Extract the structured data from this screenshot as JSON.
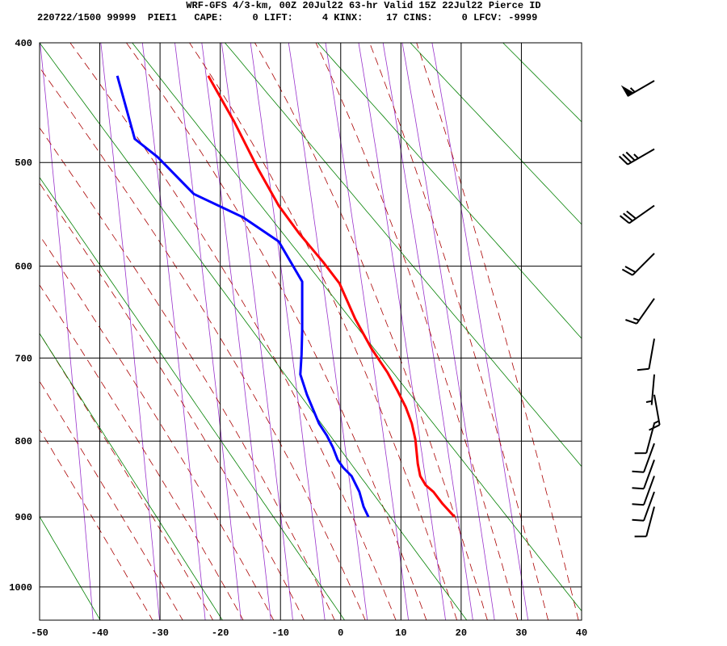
{
  "chart_data": {
    "type": "skew-t",
    "title": "WRF-GFS 4/3-km, 00Z 20Jul22 63-hr Valid 15Z 22Jul22 Pierce ID",
    "subtitle": "220722/1500 99999  PIEI1   CAPE:     0 LIFT:     4 KINX:    17 CINS:     0 LFCV: -9999",
    "xlim": [
      -50,
      40
    ],
    "xticks": [
      -50,
      -40,
      -30,
      -20,
      -10,
      0,
      10,
      20,
      30,
      40
    ],
    "ylim": [
      400,
      1050
    ],
    "yticks": [
      400,
      500,
      600,
      700,
      800,
      900,
      1000
    ],
    "grid": true,
    "series": [
      {
        "color": "#ff0000",
        "pressure": [
          900,
          882,
          866,
          857,
          845,
          829,
          798,
          778,
          758,
          738,
          717,
          689,
          656,
          618,
          596,
          567,
          540,
          506,
          464,
          426
        ],
        "values": [
          18.9,
          16.9,
          15.4,
          14.1,
          13.2,
          12.8,
          12.4,
          11.8,
          10.8,
          9.4,
          7.8,
          5.1,
          2.4,
          -0.2,
          -2.9,
          -6.9,
          -10.3,
          -13.7,
          -17.7,
          -22.0
        ]
      },
      {
        "color": "#0000ff",
        "pressure": [
          900,
          886,
          866,
          845,
          834,
          824,
          808,
          793,
          778,
          743,
          719,
          696,
          669,
          616,
          575,
          551,
          529,
          495,
          479,
          426
        ],
        "values": [
          4.6,
          3.8,
          3.1,
          1.8,
          0.4,
          -0.5,
          -1.3,
          -2.3,
          -3.6,
          -5.6,
          -6.7,
          -6.5,
          -6.4,
          -6.4,
          -10.3,
          -16.3,
          -24.4,
          -30.4,
          -34.2,
          -37.1
        ]
      }
    ],
    "winds": {
      "pressure": [
        430,
        488,
        540,
        587,
        634,
        678,
        719,
        743,
        778,
        803,
        824,
        845,
        866,
        886
      ],
      "direction": [
        240,
        240,
        235,
        225,
        215,
        190,
        185,
        170,
        195,
        200,
        200,
        200,
        200,
        195
      ],
      "speed": [
        55,
        35,
        30,
        20,
        15,
        10,
        5,
        15,
        10,
        10,
        10,
        10,
        10,
        10
      ]
    }
  }
}
